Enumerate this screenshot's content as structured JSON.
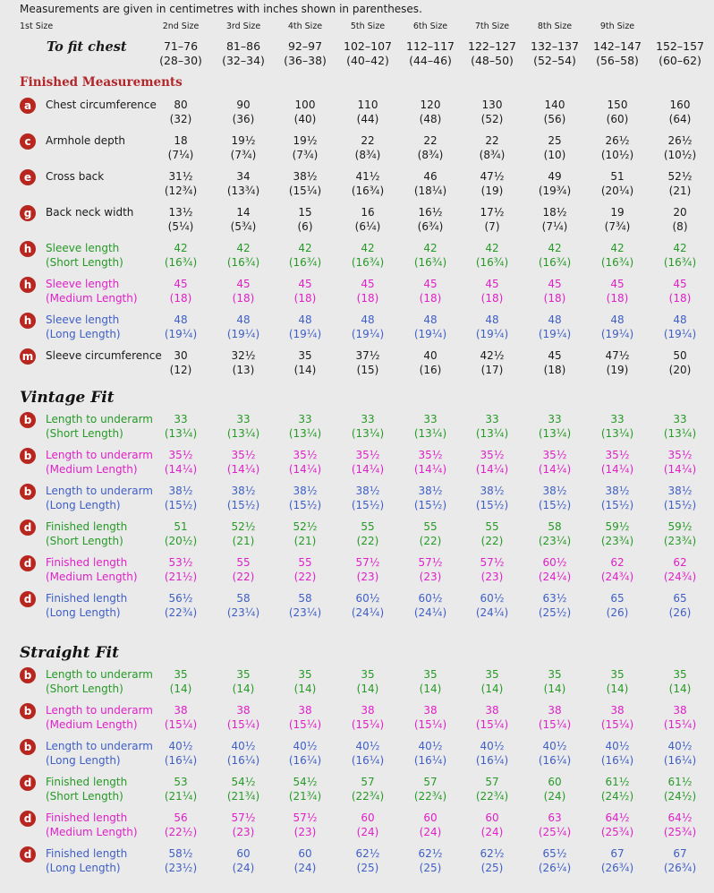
{
  "intro": "Measurements are given in centimetres with inches shown in parentheses.",
  "sizes": [
    "1st Size",
    "2nd Size",
    "3rd Size",
    "4th Size",
    "5th Size",
    "6th Size",
    "7th Size",
    "8th Size",
    "9th Size"
  ],
  "chest": {
    "label": "To fit chest",
    "cm": [
      "71–76",
      "81–86",
      "92–97",
      "102–107",
      "112–117",
      "122–127",
      "132–137",
      "142–147",
      "152–157"
    ],
    "in": [
      "(28–30)",
      "(32–34)",
      "(36–38)",
      "(40–42)",
      "(44–46)",
      "(48–50)",
      "(52–54)",
      "(56–58)",
      "(60–62)"
    ]
  },
  "sections": {
    "finished": "Finished Measurements",
    "vintage": "Vintage Fit",
    "straight": "Straight Fit"
  },
  "colors": {
    "badge": "#b7261f",
    "green": "#269a26",
    "magenta": "#e020c8",
    "blue": "#3f5fc6",
    "heading_red": "#b3262a"
  },
  "finished_rows": [
    {
      "key": "a",
      "l1": "Chest circumference",
      "l2": "",
      "c": "k",
      "cm": [
        "80",
        "90",
        "100",
        "110",
        "120",
        "130",
        "140",
        "150",
        "160"
      ],
      "in": [
        "(32)",
        "(36)",
        "(40)",
        "(44)",
        "(48)",
        "(52)",
        "(56)",
        "(60)",
        "(64)"
      ]
    },
    {
      "key": "c",
      "l1": "Armhole depth",
      "l2": "",
      "c": "k",
      "cm": [
        "18",
        "19½",
        "19½",
        "22",
        "22",
        "22",
        "25",
        "26½",
        "26½"
      ],
      "in": [
        "(7¼)",
        "(7¾)",
        "(7¾)",
        "(8¾)",
        "(8¾)",
        "(8¾)",
        "(10)",
        "(10½)",
        "(10½)"
      ]
    },
    {
      "key": "e",
      "l1": "Cross back",
      "l2": "",
      "c": "k",
      "cm": [
        "31½",
        "34",
        "38½",
        "41½",
        "46",
        "47½",
        "49",
        "51",
        "52½"
      ],
      "in": [
        "(12¾)",
        "(13¾)",
        "(15¼)",
        "(16¾)",
        "(18¼)",
        "(19)",
        "(19¾)",
        "(20¼)",
        "(21)"
      ]
    },
    {
      "key": "g",
      "l1": "Back neck width",
      "l2": "",
      "c": "k",
      "cm": [
        "13½",
        "14",
        "15",
        "16",
        "16½",
        "17½",
        "18½",
        "19",
        "20"
      ],
      "in": [
        "(5¼)",
        "(5¾)",
        "(6)",
        "(6¼)",
        "(6¾)",
        "(7)",
        "(7¼)",
        "(7¾)",
        "(8)"
      ]
    },
    {
      "key": "h",
      "l1": "Sleeve length",
      "l2": "(Short Length)",
      "c": "g",
      "cm": [
        "42",
        "42",
        "42",
        "42",
        "42",
        "42",
        "42",
        "42",
        "42"
      ],
      "in": [
        "(16¾)",
        "(16¾)",
        "(16¾)",
        "(16¾)",
        "(16¾)",
        "(16¾)",
        "(16¾)",
        "(16¾)",
        "(16¾)"
      ]
    },
    {
      "key": "h",
      "l1": "Sleeve length",
      "l2": "(Medium Length)",
      "c": "m",
      "cm": [
        "45",
        "45",
        "45",
        "45",
        "45",
        "45",
        "45",
        "45",
        "45"
      ],
      "in": [
        "(18)",
        "(18)",
        "(18)",
        "(18)",
        "(18)",
        "(18)",
        "(18)",
        "(18)",
        "(18)"
      ]
    },
    {
      "key": "h",
      "l1": "Sleeve length",
      "l2": "(Long Length)",
      "c": "b",
      "cm": [
        "48",
        "48",
        "48",
        "48",
        "48",
        "48",
        "48",
        "48",
        "48"
      ],
      "in": [
        "(19¼)",
        "(19¼)",
        "(19¼)",
        "(19¼)",
        "(19¼)",
        "(19¼)",
        "(19¼)",
        "(19¼)",
        "(19¼)"
      ]
    },
    {
      "key": "m",
      "l1": "Sleeve circumference",
      "l2": "",
      "c": "k",
      "cm": [
        "30",
        "32½",
        "35",
        "37½",
        "40",
        "42½",
        "45",
        "47½",
        "50"
      ],
      "in": [
        "(12)",
        "(13)",
        "(14)",
        "(15)",
        "(16)",
        "(17)",
        "(18)",
        "(19)",
        "(20)"
      ]
    }
  ],
  "vintage_rows": [
    {
      "key": "b",
      "l1": "Length to underarm",
      "l2": "(Short Length)",
      "c": "g",
      "cm": [
        "33",
        "33",
        "33",
        "33",
        "33",
        "33",
        "33",
        "33",
        "33"
      ],
      "in": [
        "(13¼)",
        "(13¼)",
        "(13¼)",
        "(13¼)",
        "(13¼)",
        "(13¼)",
        "(13¼)",
        "(13¼)",
        "(13¼)"
      ]
    },
    {
      "key": "b",
      "l1": "Length to underarm",
      "l2": "(Medium Length)",
      "c": "m",
      "cm": [
        "35½",
        "35½",
        "35½",
        "35½",
        "35½",
        "35½",
        "35½",
        "35½",
        "35½"
      ],
      "in": [
        "(14¼)",
        "(14¼)",
        "(14¼)",
        "(14¼)",
        "(14¼)",
        "(14¼)",
        "(14¼)",
        "(14¼)",
        "(14¼)"
      ]
    },
    {
      "key": "b",
      "l1": "Length to underarm",
      "l2": "(Long Length)",
      "c": "b",
      "cm": [
        "38½",
        "38½",
        "38½",
        "38½",
        "38½",
        "38½",
        "38½",
        "38½",
        "38½"
      ],
      "in": [
        "(15½)",
        "(15½)",
        "(15½)",
        "(15½)",
        "(15½)",
        "(15½)",
        "(15½)",
        "(15½)",
        "(15½)"
      ]
    },
    {
      "key": "d",
      "l1": "Finished length",
      "l2": "(Short Length)",
      "c": "g",
      "cm": [
        "51",
        "52½",
        "52½",
        "55",
        "55",
        "55",
        "58",
        "59½",
        "59½"
      ],
      "in": [
        "(20½)",
        "(21)",
        "(21)",
        "(22)",
        "(22)",
        "(22)",
        "(23¼)",
        "(23¾)",
        "(23¾)"
      ]
    },
    {
      "key": "d",
      "l1": "Finished length",
      "l2": "(Medium Length)",
      "c": "m",
      "cm": [
        "53½",
        "55",
        "55",
        "57½",
        "57½",
        "57½",
        "60½",
        "62",
        "62"
      ],
      "in": [
        "(21½)",
        "(22)",
        "(22)",
        "(23)",
        "(23)",
        "(23)",
        "(24¼)",
        "(24¾)",
        "(24¾)"
      ]
    },
    {
      "key": "d",
      "l1": "Finished length",
      "l2": "(Long Length)",
      "c": "b",
      "cm": [
        "56½",
        "58",
        "58",
        "60½",
        "60½",
        "60½",
        "63½",
        "65",
        "65"
      ],
      "in": [
        "(22¾)",
        "(23¼)",
        "(23¼)",
        "(24¼)",
        "(24¼)",
        "(24¼)",
        "(25½)",
        "(26)",
        "(26)"
      ]
    }
  ],
  "straight_rows": [
    {
      "key": "b",
      "l1": "Length to underarm",
      "l2": "(Short Length)",
      "c": "g",
      "cm": [
        "35",
        "35",
        "35",
        "35",
        "35",
        "35",
        "35",
        "35",
        "35"
      ],
      "in": [
        "(14)",
        "(14)",
        "(14)",
        "(14)",
        "(14)",
        "(14)",
        "(14)",
        "(14)",
        "(14)"
      ]
    },
    {
      "key": "b",
      "l1": "Length to underarm",
      "l2": "(Medium Length)",
      "c": "m",
      "cm": [
        "38",
        "38",
        "38",
        "38",
        "38",
        "38",
        "38",
        "38",
        "38"
      ],
      "in": [
        "(15¼)",
        "(15¼)",
        "(15¼)",
        "(15¼)",
        "(15¼)",
        "(15¼)",
        "(15¼)",
        "(15¼)",
        "(15¼)"
      ]
    },
    {
      "key": "b",
      "l1": "Length to underarm",
      "l2": "(Long Length)",
      "c": "b",
      "cm": [
        "40½",
        "40½",
        "40½",
        "40½",
        "40½",
        "40½",
        "40½",
        "40½",
        "40½"
      ],
      "in": [
        "(16¼)",
        "(16¼)",
        "(16¼)",
        "(16¼)",
        "(16¼)",
        "(16¼)",
        "(16¼)",
        "(16¼)",
        "(16¼)"
      ]
    },
    {
      "key": "d",
      "l1": "Finished length",
      "l2": "(Short Length)",
      "c": "g",
      "cm": [
        "53",
        "54½",
        "54½",
        "57",
        "57",
        "57",
        "60",
        "61½",
        "61½"
      ],
      "in": [
        "(21¼)",
        "(21¾)",
        "(21¾)",
        "(22¾)",
        "(22¾)",
        "(22¾)",
        "(24)",
        "(24½)",
        "(24½)"
      ]
    },
    {
      "key": "d",
      "l1": "Finished length",
      "l2": "(Medium Length)",
      "c": "m",
      "cm": [
        "56",
        "57½",
        "57½",
        "60",
        "60",
        "60",
        "63",
        "64½",
        "64½"
      ],
      "in": [
        "(22½)",
        "(23)",
        "(23)",
        "(24)",
        "(24)",
        "(24)",
        "(25¼)",
        "(25¾)",
        "(25¾)"
      ]
    },
    {
      "key": "d",
      "l1": "Finished length",
      "l2": "(Long Length)",
      "c": "b",
      "cm": [
        "58½",
        "60",
        "60",
        "62½",
        "62½",
        "62½",
        "65½",
        "67",
        "67"
      ],
      "in": [
        "(23½)",
        "(24)",
        "(24)",
        "(25)",
        "(25)",
        "(25)",
        "(26¼)",
        "(26¾)",
        "(26¾)"
      ]
    }
  ]
}
